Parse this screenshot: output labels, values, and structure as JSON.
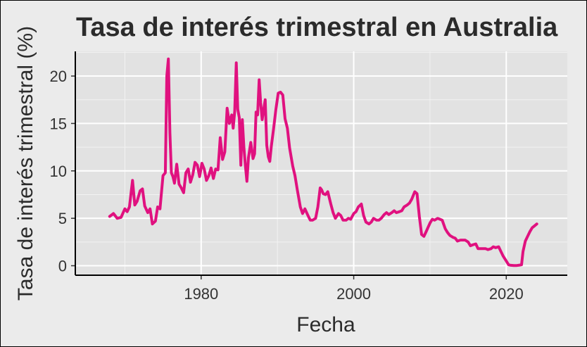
{
  "chart_data": {
    "type": "line",
    "title": "Tasa de interés trimestral en Australia",
    "xlabel": "Fecha",
    "ylabel": "Tasa de interés trimestral (%)",
    "xlim": [
      1963.5,
      2028.0
    ],
    "ylim": [
      -1.0,
      22.6
    ],
    "x_ticks": [
      1980,
      2000,
      2020
    ],
    "y_ticks": [
      0,
      5,
      10,
      15,
      20
    ],
    "grid": true,
    "line_color": "#e0117f",
    "panel_color": "#e2e2e2",
    "series": [
      {
        "points": [
          [
            1968.0,
            5.2
          ],
          [
            1968.5,
            5.5
          ],
          [
            1969.0,
            5.0
          ],
          [
            1969.5,
            5.1
          ],
          [
            1970.0,
            6.0
          ],
          [
            1970.3,
            5.7
          ],
          [
            1970.6,
            6.2
          ],
          [
            1971.0,
            9.0
          ],
          [
            1971.3,
            6.4
          ],
          [
            1971.6,
            6.8
          ],
          [
            1972.0,
            7.9
          ],
          [
            1972.3,
            8.1
          ],
          [
            1972.6,
            6.3
          ],
          [
            1973.0,
            5.6
          ],
          [
            1973.3,
            6.0
          ],
          [
            1973.6,
            4.4
          ],
          [
            1974.0,
            4.7
          ],
          [
            1974.3,
            6.2
          ],
          [
            1974.6,
            6.0
          ],
          [
            1975.0,
            9.5
          ],
          [
            1975.3,
            9.8
          ],
          [
            1975.5,
            20.0
          ],
          [
            1975.7,
            21.8
          ],
          [
            1975.9,
            14.0
          ],
          [
            1976.1,
            9.8
          ],
          [
            1976.3,
            9.4
          ],
          [
            1976.5,
            8.7
          ],
          [
            1976.8,
            10.7
          ],
          [
            1977.1,
            8.6
          ],
          [
            1977.4,
            8.2
          ],
          [
            1977.7,
            7.7
          ],
          [
            1978.0,
            9.8
          ],
          [
            1978.3,
            10.2
          ],
          [
            1978.6,
            8.8
          ],
          [
            1978.9,
            9.6
          ],
          [
            1979.2,
            10.9
          ],
          [
            1979.5,
            10.6
          ],
          [
            1979.8,
            9.4
          ],
          [
            1980.1,
            10.8
          ],
          [
            1980.4,
            10.2
          ],
          [
            1980.7,
            9.0
          ],
          [
            1981.0,
            9.5
          ],
          [
            1981.3,
            10.3
          ],
          [
            1981.6,
            9.2
          ],
          [
            1981.9,
            10.2
          ],
          [
            1982.2,
            10.1
          ],
          [
            1982.5,
            13.5
          ],
          [
            1982.8,
            11.2
          ],
          [
            1983.1,
            12.0
          ],
          [
            1983.4,
            16.6
          ],
          [
            1983.7,
            15.0
          ],
          [
            1984.0,
            15.9
          ],
          [
            1984.2,
            14.5
          ],
          [
            1984.4,
            16.3
          ],
          [
            1984.6,
            21.4
          ],
          [
            1984.8,
            16.5
          ],
          [
            1985.0,
            15.6
          ],
          [
            1985.2,
            10.6
          ],
          [
            1985.4,
            15.4
          ],
          [
            1985.6,
            12.5
          ],
          [
            1985.8,
            10.5
          ],
          [
            1986.0,
            8.9
          ],
          [
            1986.2,
            11.4
          ],
          [
            1986.5,
            13.0
          ],
          [
            1986.8,
            11.3
          ],
          [
            1987.0,
            11.8
          ],
          [
            1987.2,
            16.2
          ],
          [
            1987.4,
            15.9
          ],
          [
            1987.6,
            19.6
          ],
          [
            1987.8,
            17.2
          ],
          [
            1988.0,
            15.4
          ],
          [
            1988.2,
            16.5
          ],
          [
            1988.4,
            17.5
          ],
          [
            1988.6,
            12.7
          ],
          [
            1988.8,
            11.5
          ],
          [
            1989.0,
            11.0
          ],
          [
            1989.2,
            12.6
          ],
          [
            1989.5,
            14.5
          ],
          [
            1989.8,
            16.5
          ],
          [
            1990.1,
            18.2
          ],
          [
            1990.4,
            18.3
          ],
          [
            1990.7,
            18.0
          ],
          [
            1991.0,
            15.5
          ],
          [
            1991.3,
            14.5
          ],
          [
            1991.6,
            12.4
          ],
          [
            1992.0,
            10.5
          ],
          [
            1992.3,
            9.5
          ],
          [
            1992.6,
            8.0
          ],
          [
            1993.0,
            6.2
          ],
          [
            1993.3,
            5.5
          ],
          [
            1993.6,
            6.0
          ],
          [
            1994.0,
            5.3
          ],
          [
            1994.3,
            4.8
          ],
          [
            1994.6,
            4.8
          ],
          [
            1995.0,
            5.0
          ],
          [
            1995.3,
            6.2
          ],
          [
            1995.6,
            8.2
          ],
          [
            1995.8,
            8.0
          ],
          [
            1996.0,
            7.6
          ],
          [
            1996.3,
            7.5
          ],
          [
            1996.6,
            7.8
          ],
          [
            1997.0,
            6.5
          ],
          [
            1997.3,
            5.6
          ],
          [
            1997.6,
            5.0
          ],
          [
            1998.0,
            5.5
          ],
          [
            1998.3,
            5.3
          ],
          [
            1998.6,
            4.8
          ],
          [
            1999.0,
            4.8
          ],
          [
            1999.3,
            5.0
          ],
          [
            1999.6,
            4.9
          ],
          [
            2000.0,
            5.5
          ],
          [
            2000.3,
            5.7
          ],
          [
            2000.6,
            6.2
          ],
          [
            2001.0,
            6.5
          ],
          [
            2001.3,
            5.3
          ],
          [
            2001.6,
            4.6
          ],
          [
            2002.0,
            4.4
          ],
          [
            2002.3,
            4.6
          ],
          [
            2002.6,
            5.0
          ],
          [
            2003.0,
            4.8
          ],
          [
            2003.3,
            4.8
          ],
          [
            2003.6,
            5.0
          ],
          [
            2004.0,
            5.4
          ],
          [
            2004.3,
            5.6
          ],
          [
            2004.6,
            5.4
          ],
          [
            2005.0,
            5.6
          ],
          [
            2005.3,
            5.8
          ],
          [
            2005.6,
            5.6
          ],
          [
            2006.0,
            5.7
          ],
          [
            2006.3,
            5.8
          ],
          [
            2006.6,
            6.2
          ],
          [
            2007.0,
            6.4
          ],
          [
            2007.3,
            6.6
          ],
          [
            2007.6,
            7.0
          ],
          [
            2008.0,
            7.8
          ],
          [
            2008.3,
            7.6
          ],
          [
            2008.6,
            5.2
          ],
          [
            2008.9,
            3.3
          ],
          [
            2009.2,
            3.1
          ],
          [
            2009.5,
            3.6
          ],
          [
            2010.0,
            4.5
          ],
          [
            2010.3,
            4.9
          ],
          [
            2010.6,
            4.8
          ],
          [
            2011.0,
            5.0
          ],
          [
            2011.3,
            4.9
          ],
          [
            2011.6,
            4.8
          ],
          [
            2012.0,
            3.9
          ],
          [
            2012.3,
            3.5
          ],
          [
            2012.6,
            3.2
          ],
          [
            2013.0,
            3.0
          ],
          [
            2013.3,
            2.9
          ],
          [
            2013.6,
            2.6
          ],
          [
            2014.0,
            2.7
          ],
          [
            2014.3,
            2.7
          ],
          [
            2014.6,
            2.7
          ],
          [
            2015.0,
            2.5
          ],
          [
            2015.3,
            2.1
          ],
          [
            2015.6,
            2.2
          ],
          [
            2016.0,
            2.3
          ],
          [
            2016.3,
            1.8
          ],
          [
            2016.6,
            1.8
          ],
          [
            2017.0,
            1.8
          ],
          [
            2017.3,
            1.8
          ],
          [
            2017.6,
            1.7
          ],
          [
            2018.0,
            1.8
          ],
          [
            2018.3,
            2.0
          ],
          [
            2018.6,
            1.9
          ],
          [
            2019.0,
            2.0
          ],
          [
            2019.3,
            1.5
          ],
          [
            2019.6,
            1.0
          ],
          [
            2020.0,
            0.5
          ],
          [
            2020.3,
            0.1
          ],
          [
            2020.6,
            0.05
          ],
          [
            2021.0,
            0.02
          ],
          [
            2021.3,
            0.02
          ],
          [
            2021.6,
            0.05
          ],
          [
            2022.0,
            0.1
          ],
          [
            2022.2,
            1.5
          ],
          [
            2022.5,
            2.6
          ],
          [
            2022.8,
            3.1
          ],
          [
            2023.1,
            3.6
          ],
          [
            2023.4,
            4.0
          ],
          [
            2023.7,
            4.2
          ],
          [
            2024.0,
            4.4
          ]
        ]
      }
    ]
  }
}
